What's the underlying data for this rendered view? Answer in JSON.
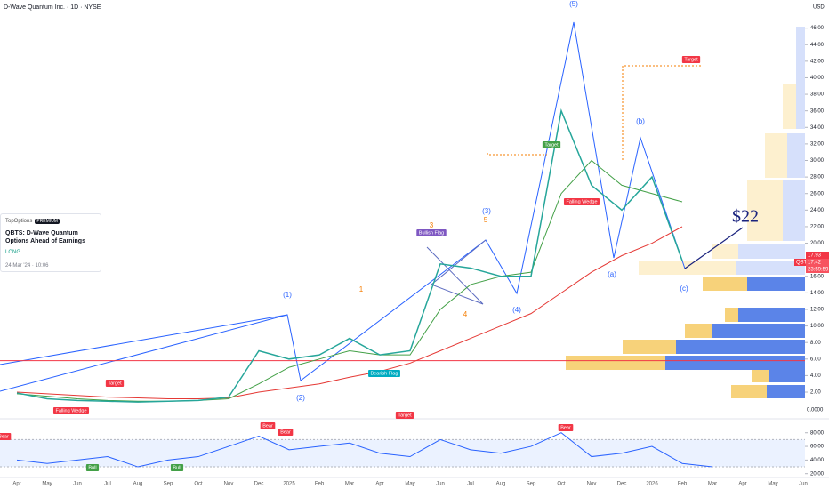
{
  "chart_data": {
    "type": "line",
    "title": "D-Wave Quantum Inc. · 1D · NYSE",
    "currency": "USD",
    "volume_axis_label": "0.0000",
    "categories": [
      "Apr",
      "May",
      "Jun",
      "Jul",
      "Aug",
      "Sep",
      "Oct",
      "Nov",
      "Dec",
      "2025",
      "Feb",
      "Mar",
      "Apr",
      "May",
      "Jun",
      "Jul",
      "Aug",
      "Sep",
      "Oct",
      "Nov",
      "Dec",
      "2026",
      "Feb",
      "Mar",
      "Apr",
      "May",
      "Jun"
    ],
    "series": [
      {
        "name": "QBTS",
        "color": "#26a69a",
        "values": [
          1.9,
          1.2,
          1.0,
          0.9,
          0.8,
          0.9,
          1.0,
          1.4,
          7.0,
          6.0,
          6.5,
          8.5,
          6.5,
          7.0,
          17.5,
          17.0,
          16.0,
          16.0,
          36.0,
          27.0,
          24.0,
          28.0,
          17.9,
          null,
          null,
          null,
          null
        ]
      },
      {
        "color": "#43a047",
        "values": [
          1.8,
          1.5,
          1.2,
          1.0,
          0.9,
          0.9,
          1.0,
          1.2,
          3.0,
          5.0,
          6.0,
          7.0,
          6.5,
          6.5,
          12.0,
          15.0,
          16.0,
          16.5,
          26.0,
          30.0,
          27.0,
          26.0,
          25.0,
          null,
          null,
          null,
          null
        ]
      },
      {
        "color": "#e53935",
        "values": [
          2.0,
          1.8,
          1.6,
          1.4,
          1.3,
          1.2,
          1.2,
          1.3,
          2.0,
          2.5,
          3.0,
          3.8,
          4.5,
          5.5,
          7.0,
          8.5,
          10.0,
          11.5,
          14.0,
          16.5,
          18.5,
          20.0,
          22.0,
          null,
          null,
          null,
          null
        ]
      }
    ],
    "support_level": 5.8,
    "ylim": [
      -0.9,
      49.4
    ],
    "yticks": [
      {
        "value": 2,
        "label": "2.00"
      },
      {
        "value": 4,
        "label": "4.00"
      },
      {
        "value": 6,
        "label": "6.00"
      },
      {
        "value": 8,
        "label": "8.00"
      },
      {
        "value": 10,
        "label": "10.00"
      },
      {
        "value": 12,
        "label": "12.00"
      },
      {
        "value": 14,
        "label": "14.00"
      },
      {
        "value": 16,
        "label": "16.00"
      },
      {
        "value": 18,
        "label": "18.00"
      },
      {
        "value": 20,
        "label": "20.00"
      },
      {
        "value": 22,
        "label": "22.00"
      },
      {
        "value": 24,
        "label": "24.00"
      },
      {
        "value": 26,
        "label": "26.00"
      },
      {
        "value": 28,
        "label": "28.00"
      },
      {
        "value": 30,
        "label": "30.00"
      },
      {
        "value": 32,
        "label": "32.00"
      },
      {
        "value": 34,
        "label": "34.00"
      },
      {
        "value": 36,
        "label": "36.00"
      },
      {
        "value": 38,
        "label": "38.00"
      },
      {
        "value": 40,
        "label": "40.00"
      },
      {
        "value": 42,
        "label": "42.00"
      },
      {
        "value": 44,
        "label": "44.00"
      },
      {
        "value": 46,
        "label": "46.00"
      }
    ],
    "price_tags": {
      "symbol": "QBTS",
      "last": "17.93",
      "prev": "17.42",
      "countdown": "23:59:59"
    },
    "rsi": {
      "values": [
        40,
        35,
        40,
        45,
        30,
        40,
        45,
        60,
        75,
        55,
        60,
        65,
        50,
        45,
        70,
        55,
        50,
        60,
        80,
        45,
        50,
        60,
        35,
        30,
        null,
        null,
        null
      ],
      "ylim": [
        17,
        94
      ],
      "bands": [
        30,
        70
      ],
      "yticks": [
        {
          "value": 20,
          "label": "20.00"
        },
        {
          "value": 40,
          "label": "40.00"
        },
        {
          "value": 60,
          "label": "60.00"
        },
        {
          "value": 80,
          "label": "80.00"
        }
      ]
    },
    "annotations": [
      "(5)",
      "(b)",
      "(1)",
      "(3)",
      "(4)",
      "(a)",
      "(c)",
      "(2)",
      "1",
      "3",
      "5",
      "4",
      "$22",
      "Target",
      "Target",
      "Target",
      "Target",
      "Bullish Flag",
      "Bearish Flag",
      "Falling Wedge",
      "Falling Wedge",
      "Bear",
      "Bear",
      "Bear",
      "Bear",
      "Bull",
      "Bull"
    ]
  },
  "idea_card": {
    "brand": "TopOptions",
    "badge": "PREMIUM",
    "title": "QBTS: D-Wave Quantum Options Ahead of Earnings",
    "direction": "LONG",
    "date": "24 Mar '24 · 10:06"
  }
}
